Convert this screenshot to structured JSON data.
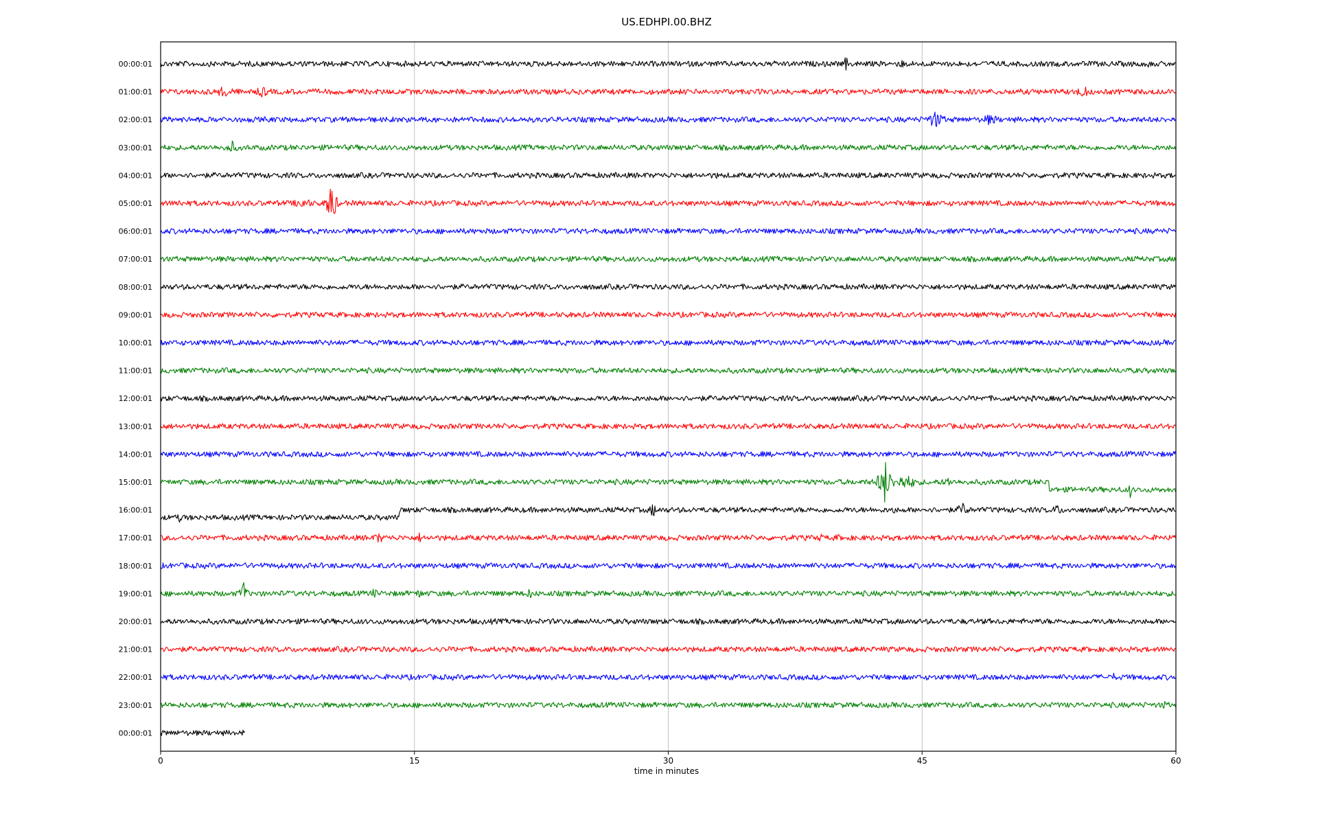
{
  "chart_data": {
    "type": "line",
    "title": "US.EDHPI.00.BHZ",
    "xlabel": "time in minutes",
    "ylabel": "",
    "xlim": [
      0,
      60
    ],
    "x_ticks": [
      "0",
      "15",
      "30",
      "45",
      "60"
    ],
    "x_tick_values": [
      0,
      15,
      30,
      45,
      60
    ],
    "grid": "vertical",
    "colors": [
      "#000000",
      "#ff0000",
      "#0000ff",
      "#008000"
    ],
    "rows": [
      {
        "label": "00:00:01",
        "color": "#000000",
        "end_minute": 60,
        "events": [
          {
            "t": 40.5,
            "amp": 14,
            "dur": 0.3
          },
          {
            "t": 43.8,
            "amp": 12,
            "dur": 0.3
          },
          {
            "t": 58.4,
            "amp": 8,
            "dur": 0.4
          }
        ]
      },
      {
        "label": "01:00:01",
        "color": "#ff0000",
        "end_minute": 60,
        "events": [
          {
            "t": 3.8,
            "amp": 9,
            "dur": 2.5
          },
          {
            "t": 6.0,
            "amp": 11,
            "dur": 1.0
          },
          {
            "t": 54.5,
            "amp": 10,
            "dur": 1.5
          }
        ]
      },
      {
        "label": "02:00:01",
        "color": "#0000ff",
        "end_minute": 60,
        "events": [
          {
            "t": 45.8,
            "amp": 14,
            "dur": 1.5
          },
          {
            "t": 49.0,
            "amp": 9,
            "dur": 2.0
          }
        ]
      },
      {
        "label": "03:00:01",
        "color": "#008000",
        "end_minute": 60,
        "events": [
          {
            "t": 4.2,
            "amp": 11,
            "dur": 1.0
          },
          {
            "t": 51.0,
            "amp": 6,
            "dur": 0.8
          }
        ]
      },
      {
        "label": "04:00:01",
        "color": "#000000",
        "end_minute": 60,
        "events": [
          {
            "t": 32.8,
            "amp": 9,
            "dur": 0.3
          }
        ]
      },
      {
        "label": "05:00:01",
        "color": "#ff0000",
        "end_minute": 60,
        "events": [
          {
            "t": 1.0,
            "amp": 7,
            "dur": 1.5
          },
          {
            "t": 8.4,
            "amp": 9,
            "dur": 2.0
          },
          {
            "t": 10.1,
            "amp": 40,
            "dur": 0.6
          },
          {
            "t": 23.0,
            "amp": 6,
            "dur": 1.5
          }
        ]
      },
      {
        "label": "06:00:01",
        "color": "#0000ff",
        "end_minute": 60,
        "events": []
      },
      {
        "label": "07:00:01",
        "color": "#008000",
        "end_minute": 60,
        "events": [
          {
            "t": 10.5,
            "amp": 6,
            "dur": 0.6
          }
        ]
      },
      {
        "label": "08:00:01",
        "color": "#000000",
        "end_minute": 60,
        "events": []
      },
      {
        "label": "09:00:01",
        "color": "#ff0000",
        "end_minute": 60,
        "events": []
      },
      {
        "label": "10:00:01",
        "color": "#0000ff",
        "end_minute": 60,
        "events": []
      },
      {
        "label": "11:00:01",
        "color": "#008000",
        "end_minute": 60,
        "events": []
      },
      {
        "label": "12:00:01",
        "color": "#000000",
        "end_minute": 60,
        "events": []
      },
      {
        "label": "13:00:01",
        "color": "#ff0000",
        "end_minute": 60,
        "events": []
      },
      {
        "label": "14:00:01",
        "color": "#0000ff",
        "end_minute": 60,
        "events": []
      },
      {
        "label": "15:00:01",
        "color": "#008000",
        "end_minute": 60,
        "step_at": 52.5,
        "step_to": -11,
        "events": [
          {
            "t": 42.8,
            "amp": 34,
            "dur": 1.0
          },
          {
            "t": 44.0,
            "amp": 12,
            "dur": 2.5
          },
          {
            "t": 46.5,
            "amp": 9,
            "dur": 1.0
          },
          {
            "t": 57.3,
            "amp": 12,
            "dur": 0.4
          }
        ]
      },
      {
        "label": "16:00:01",
        "color": "#000000",
        "end_minute": 60,
        "step_at": 14.1,
        "step_from": -11,
        "events": [
          {
            "t": 1.2,
            "amp": 10,
            "dur": 0.6
          },
          {
            "t": 23.5,
            "amp": 7,
            "dur": 0.4
          },
          {
            "t": 29.1,
            "amp": 14,
            "dur": 0.5
          },
          {
            "t": 43.3,
            "amp": 10,
            "dur": 0.3
          },
          {
            "t": 47.4,
            "amp": 12,
            "dur": 1.0
          },
          {
            "t": 53.0,
            "amp": 9,
            "dur": 1.0
          }
        ]
      },
      {
        "label": "17:00:01",
        "color": "#ff0000",
        "end_minute": 60,
        "events": [
          {
            "t": 12.9,
            "amp": 9,
            "dur": 1.0
          },
          {
            "t": 15.3,
            "amp": 9,
            "dur": 0.4
          },
          {
            "t": 39.0,
            "amp": 8,
            "dur": 0.4
          },
          {
            "t": 40.0,
            "amp": 8,
            "dur": 0.4
          },
          {
            "t": 47.4,
            "amp": 6,
            "dur": 0.6
          }
        ]
      },
      {
        "label": "18:00:01",
        "color": "#0000ff",
        "end_minute": 60,
        "events": []
      },
      {
        "label": "19:00:01",
        "color": "#008000",
        "end_minute": 60,
        "events": [
          {
            "t": 4.9,
            "amp": 22,
            "dur": 0.5
          },
          {
            "t": 12.6,
            "amp": 8,
            "dur": 1.0
          },
          {
            "t": 15.3,
            "amp": 10,
            "dur": 0.5
          },
          {
            "t": 21.8,
            "amp": 10,
            "dur": 0.5
          },
          {
            "t": 53.7,
            "amp": 5,
            "dur": 0.8
          }
        ]
      },
      {
        "label": "20:00:01",
        "color": "#000000",
        "end_minute": 60,
        "events": []
      },
      {
        "label": "21:00:01",
        "color": "#ff0000",
        "end_minute": 60,
        "events": []
      },
      {
        "label": "22:00:01",
        "color": "#0000ff",
        "end_minute": 60,
        "events": [
          {
            "t": 2.5,
            "amp": 5,
            "dur": 1.5
          },
          {
            "t": 56.3,
            "amp": 7,
            "dur": 0.5
          }
        ]
      },
      {
        "label": "23:00:01",
        "color": "#008000",
        "end_minute": 60,
        "events": [
          {
            "t": 59.3,
            "amp": 9,
            "dur": 0.4
          }
        ]
      },
      {
        "label": "00:00:01",
        "color": "#000000",
        "end_minute": 5,
        "events": []
      }
    ]
  }
}
